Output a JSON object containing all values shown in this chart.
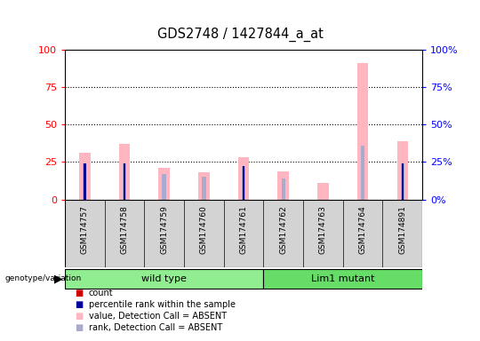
{
  "title": "GDS2748 / 1427844_a_at",
  "samples": [
    "GSM174757",
    "GSM174758",
    "GSM174759",
    "GSM174760",
    "GSM174761",
    "GSM174762",
    "GSM174763",
    "GSM174764",
    "GSM174891"
  ],
  "count_values": [
    0,
    0,
    0,
    0,
    0,
    0,
    0,
    0,
    0
  ],
  "percentile_rank": [
    24,
    24,
    0,
    0,
    22,
    0,
    0,
    0,
    24
  ],
  "absent_value": [
    31,
    37,
    21,
    18,
    28,
    19,
    11,
    91,
    39
  ],
  "absent_rank": [
    24,
    24,
    17,
    15,
    22,
    14,
    0,
    36,
    24
  ],
  "groups": [
    {
      "label": "wild type",
      "start": 0,
      "end": 5,
      "color": "#90EE90"
    },
    {
      "label": "Lim1 mutant",
      "start": 5,
      "end": 9,
      "color": "#66DD66"
    }
  ],
  "ylim": [
    0,
    100
  ],
  "yticks": [
    0,
    25,
    50,
    75,
    100
  ],
  "absent_val_color": "#FFB6C1",
  "absent_rank_color": "#AAAACC",
  "percentile_color": "#000099",
  "count_color": "#CC0000",
  "legend_labels": [
    "count",
    "percentile rank within the sample",
    "value, Detection Call = ABSENT",
    "rank, Detection Call = ABSENT"
  ],
  "legend_colors": [
    "#CC0000",
    "#000099",
    "#FFB6C1",
    "#AAAACC"
  ]
}
